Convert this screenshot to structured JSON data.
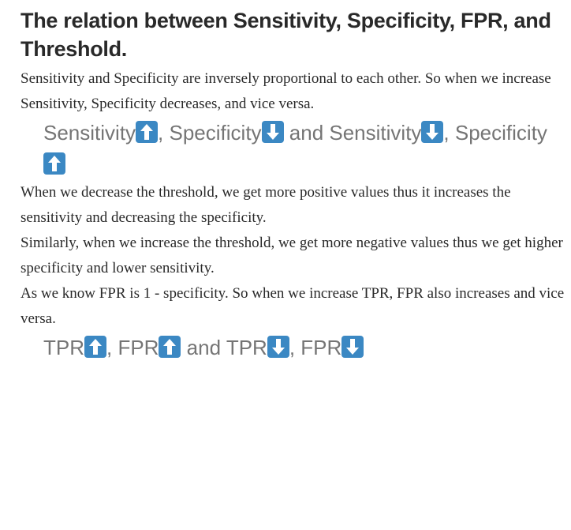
{
  "article": {
    "heading": "The relation between Sensitivity, Specificity, FPR, and Threshold.",
    "paragraph_1": "Sensitivity and Specificity are inversely proportional to each other. So when we increase Sensitivity, Specificity decreases, and vice versa.",
    "quote_1": {
      "term_a": "Sensitivity",
      "sep_1": ", ",
      "term_b": "Specificity",
      "sep_2": " and ",
      "term_c": "Sensitivity",
      "sep_3": ", ",
      "term_d": "Specificity"
    },
    "paragraph_2": "When we decrease the threshold, we get more positive values thus it increases the sensitivity and decreasing the specificity.",
    "paragraph_3": "Similarly, when we increase the threshold, we get more negative values thus we get higher specificity and lower sensitivity.",
    "paragraph_4": "As we know FPR is 1 - specificity. So when we increase TPR, FPR also increases and vice versa.",
    "quote_2": {
      "term_a": "TPR",
      "sep_1": ", ",
      "term_b": "FPR",
      "sep_2": " and ",
      "term_c": "TPR",
      "sep_3": ", ",
      "term_d": "FPR"
    }
  },
  "icons": {
    "up": "up-arrow-emoji-icon",
    "down": "down-arrow-emoji-icon",
    "emoji_color": "#3b88c3"
  }
}
